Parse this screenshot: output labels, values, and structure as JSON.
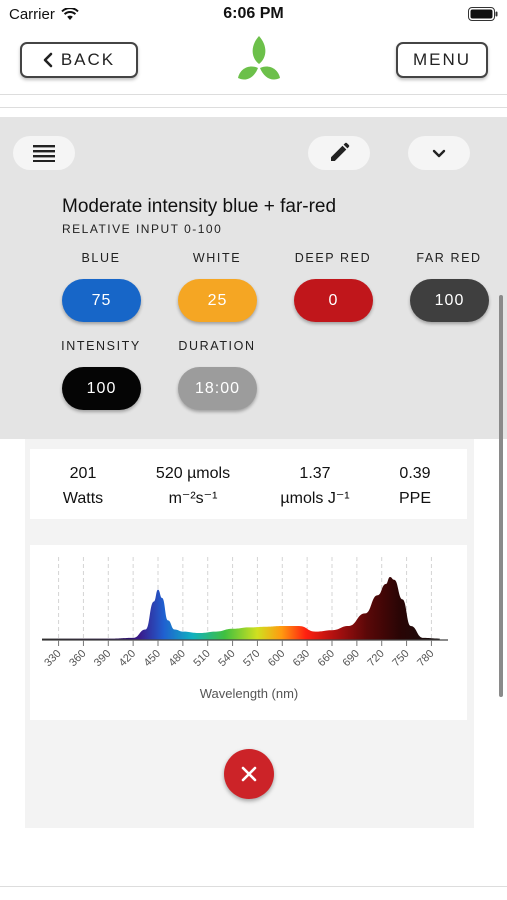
{
  "status_bar": {
    "carrier": "Carrier",
    "time": "6:06 PM"
  },
  "nav": {
    "back_label": "BACK",
    "menu_label": "MENU"
  },
  "preset": {
    "title": "Moderate intensity blue + far-red",
    "subtitle": "RELATIVE INPUT 0-100"
  },
  "channels": [
    {
      "label": "BLUE",
      "value": "75",
      "color": "#1766c8"
    },
    {
      "label": "WHITE",
      "value": "25",
      "color": "#f5a623"
    },
    {
      "label": "DEEP RED",
      "value": "0",
      "color": "#c0161b"
    },
    {
      "label": "FAR RED",
      "value": "100",
      "color": "#3f3f3f"
    },
    {
      "label": "INTENSITY",
      "value": "100",
      "color": "#050505"
    },
    {
      "label": "DURATION",
      "value": "18:00",
      "color": "#9c9c9c"
    }
  ],
  "stats": [
    {
      "value": "201",
      "unit": "Watts"
    },
    {
      "value": "520 µmols",
      "unit": "m⁻²s⁻¹"
    },
    {
      "value": "1.37",
      "unit": "µmols J⁻¹"
    },
    {
      "value": "0.39",
      "unit": "PPE"
    }
  ],
  "chart_data": {
    "type": "area",
    "xlabel": "Wavelength (nm)",
    "ylabel": "",
    "xlim": [
      310,
      800
    ],
    "ylim": [
      0,
      1
    ],
    "x_ticks": [
      330,
      360,
      390,
      420,
      450,
      480,
      510,
      540,
      570,
      600,
      630,
      660,
      690,
      720,
      750,
      780
    ],
    "x": [
      310,
      330,
      360,
      390,
      420,
      435,
      445,
      450,
      455,
      462,
      470,
      480,
      500,
      520,
      540,
      560,
      580,
      600,
      620,
      640,
      660,
      680,
      700,
      715,
      725,
      730,
      735,
      745,
      755,
      770,
      790
    ],
    "values": [
      0.02,
      0.02,
      0.02,
      0.02,
      0.03,
      0.15,
      0.55,
      0.72,
      0.6,
      0.28,
      0.15,
      0.12,
      0.1,
      0.12,
      0.16,
      0.18,
      0.19,
      0.2,
      0.2,
      0.12,
      0.14,
      0.2,
      0.38,
      0.64,
      0.8,
      0.9,
      0.86,
      0.58,
      0.2,
      0.03,
      0.02
    ],
    "grid": true,
    "legend": "none"
  }
}
